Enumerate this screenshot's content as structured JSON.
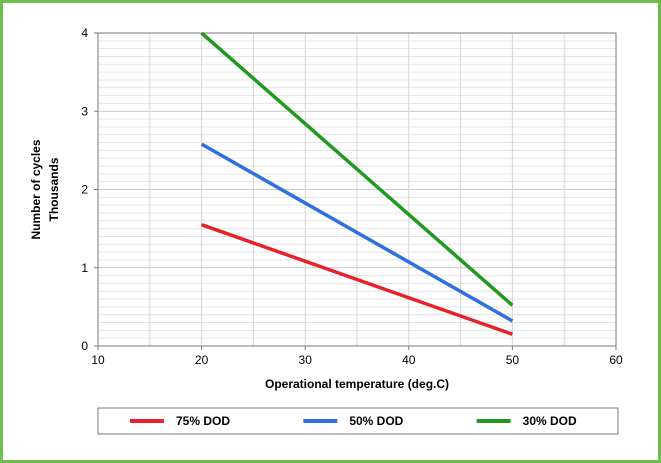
{
  "chart_data": {
    "type": "line",
    "xlabel": "Operational temperature (deg.C)",
    "ylabel": "Number of cycles",
    "ylabel2": "Thousands",
    "xlim": [
      10,
      60
    ],
    "ylim": [
      0,
      4
    ],
    "x_ticks": [
      "10",
      "20",
      "30",
      "40",
      "50",
      "60"
    ],
    "y_ticks": [
      "0",
      "1",
      "2",
      "3",
      "4"
    ],
    "grid": "on",
    "legend_position": "bottom",
    "series": [
      {
        "name": "75% DOD",
        "color": "#e8202a",
        "x": [
          20,
          50
        ],
        "y": [
          1.55,
          0.15
        ]
      },
      {
        "name": "50% DOD",
        "color": "#2f6fe0",
        "x": [
          20,
          50
        ],
        "y": [
          2.58,
          0.32
        ]
      },
      {
        "name": "30% DOD",
        "color": "#1f9a1f",
        "x": [
          20,
          50
        ],
        "y": [
          4.0,
          0.52
        ]
      }
    ]
  }
}
